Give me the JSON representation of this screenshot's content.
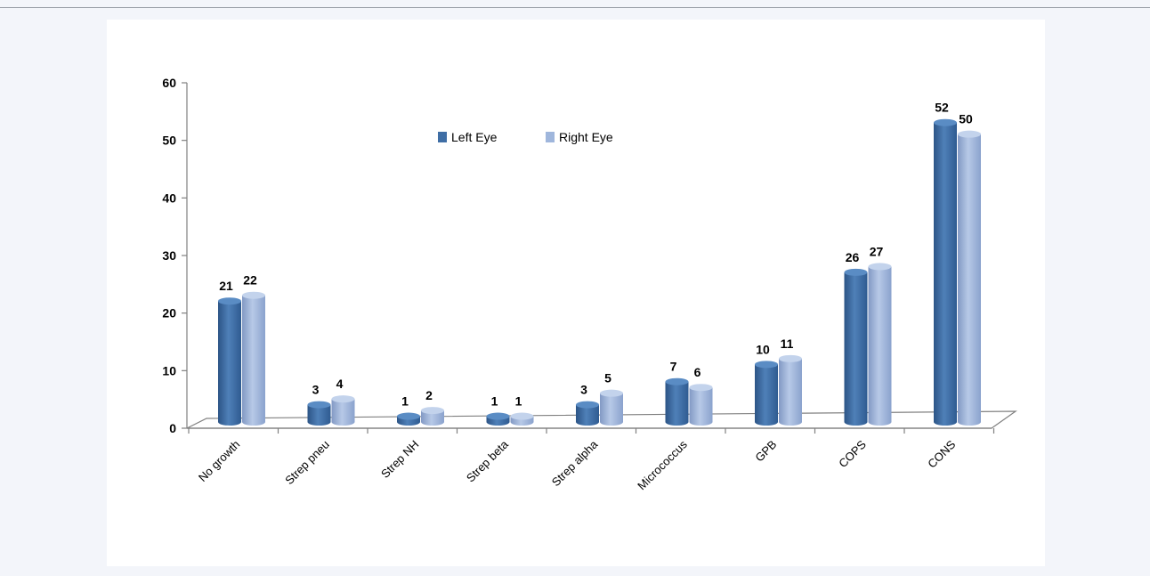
{
  "colors": {
    "left_eye": "#3f6ea5",
    "right_eye": "#9fb6dc",
    "axis": "#808080",
    "background": "#f3f5fa"
  },
  "chart_data": {
    "type": "bar",
    "categories": [
      "No growth",
      "Strep pneu",
      "Strep NH",
      "Strep beta",
      "Strep alpha",
      "Micrococcus",
      "GPB",
      "COPS",
      "CONS"
    ],
    "series": [
      {
        "name": "Left Eye",
        "values": [
          21,
          3,
          1,
          1,
          3,
          7,
          10,
          26,
          52
        ]
      },
      {
        "name": "Right Eye",
        "values": [
          22,
          4,
          2,
          1,
          5,
          6,
          11,
          27,
          50
        ]
      }
    ],
    "yticks": [
      "0",
      "10",
      "20",
      "30",
      "40",
      "50",
      "60"
    ],
    "ylim": [
      0,
      60
    ],
    "title": "",
    "xlabel": "",
    "ylabel": "",
    "legend_position": "top-center",
    "grid": false,
    "style": "3d-cylinder-bars"
  }
}
